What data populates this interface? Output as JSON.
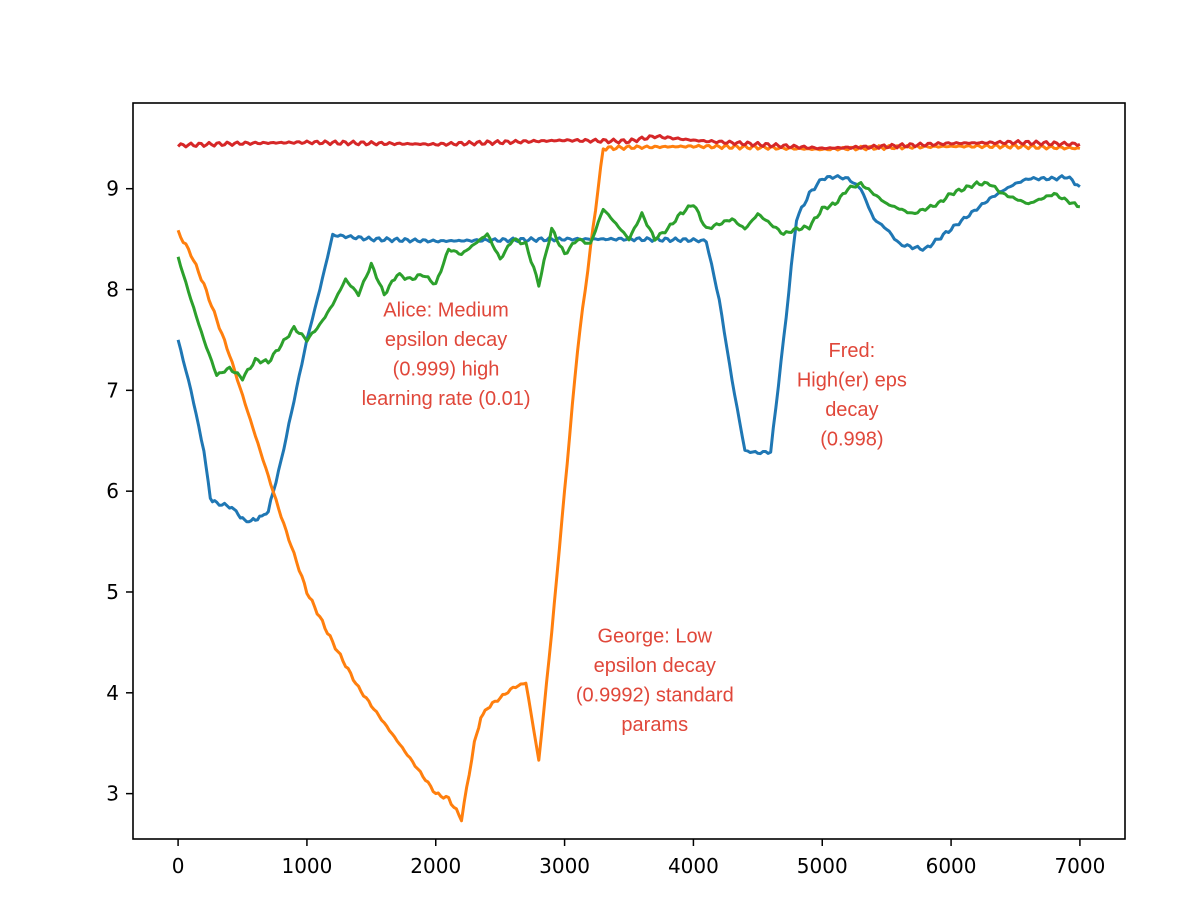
{
  "chart_data": {
    "type": "line",
    "title": "",
    "xlabel": "",
    "ylabel": "",
    "xlim": [
      -350,
      7350
    ],
    "ylim": [
      2.55,
      9.85
    ],
    "grid": false,
    "legend": "none",
    "x_ticks": [
      0,
      1000,
      2000,
      3000,
      4000,
      5000,
      6000,
      7000
    ],
    "x_tick_labels": [
      "0",
      "1000",
      "2000",
      "3000",
      "4000",
      "5000",
      "6000",
      "7000"
    ],
    "y_ticks": [
      3,
      4,
      5,
      6,
      7,
      8,
      9
    ],
    "y_tick_labels": [
      "3",
      "4",
      "5",
      "6",
      "7",
      "8",
      "9"
    ],
    "series": [
      {
        "color": "#1f77b4",
        "x": [
          0,
          100,
          200,
          250,
          300,
          400,
          450,
          500,
          550,
          600,
          650,
          700,
          800,
          900,
          1000,
          1100,
          1200,
          1500,
          2000,
          2500,
          3000,
          3500,
          4000,
          4100,
          4200,
          4300,
          4400,
          4500,
          4600,
          4700,
          4800,
          4900,
          5000,
          5100,
          5200,
          5300,
          5400,
          5500,
          5600,
          5700,
          5800,
          5900,
          6000,
          6100,
          6200,
          6300,
          6400,
          6500,
          6600,
          6700,
          6800,
          6900,
          7000
        ],
        "values": [
          7.5,
          7.0,
          6.4,
          5.93,
          5.88,
          5.85,
          5.8,
          5.72,
          5.7,
          5.72,
          5.75,
          5.8,
          6.3,
          6.9,
          7.5,
          8.0,
          8.54,
          8.5,
          8.48,
          8.49,
          8.5,
          8.5,
          8.49,
          8.48,
          7.9,
          7.1,
          6.4,
          6.38,
          6.39,
          7.5,
          8.7,
          8.95,
          9.1,
          9.12,
          9.1,
          9.0,
          8.7,
          8.6,
          8.45,
          8.42,
          8.4,
          8.5,
          8.6,
          8.7,
          8.8,
          8.9,
          8.98,
          9.05,
          9.1,
          9.1,
          9.1,
          9.12,
          9.02
        ]
      },
      {
        "color": "#ff7f0e",
        "x": [
          0,
          100,
          200,
          400,
          600,
          800,
          1000,
          1200,
          1400,
          1600,
          1800,
          2000,
          2100,
          2200,
          2300,
          2350,
          2400,
          2500,
          2600,
          2700,
          2800,
          2900,
          3000,
          3100,
          3200,
          3300,
          3500,
          4000,
          4500,
          5000,
          5500,
          6000,
          6500,
          7000
        ],
        "values": [
          8.57,
          8.35,
          8.05,
          7.35,
          6.55,
          5.75,
          5.0,
          4.5,
          4.05,
          3.7,
          3.35,
          3.0,
          2.95,
          2.75,
          3.5,
          3.75,
          3.85,
          3.95,
          4.05,
          4.1,
          3.33,
          4.6,
          6.0,
          7.4,
          8.4,
          9.4,
          9.41,
          9.42,
          9.41,
          9.39,
          9.41,
          9.42,
          9.42,
          9.4
        ]
      },
      {
        "color": "#2ca02c",
        "x": [
          0,
          100,
          200,
          300,
          400,
          500,
          600,
          700,
          800,
          900,
          1000,
          1100,
          1200,
          1300,
          1400,
          1500,
          1600,
          1700,
          1800,
          1900,
          2000,
          2100,
          2200,
          2300,
          2400,
          2500,
          2600,
          2700,
          2800,
          2900,
          3000,
          3100,
          3200,
          3300,
          3400,
          3500,
          3600,
          3700,
          3800,
          3900,
          4000,
          4100,
          4200,
          4300,
          4400,
          4500,
          4600,
          4700,
          4800,
          4900,
          5000,
          5100,
          5200,
          5300,
          5400,
          5500,
          5600,
          5700,
          5800,
          5900,
          6000,
          6100,
          6200,
          6300,
          6400,
          6500,
          6600,
          6700,
          6800,
          6900,
          7000
        ],
        "values": [
          8.32,
          7.9,
          7.5,
          7.15,
          7.22,
          7.12,
          7.3,
          7.28,
          7.45,
          7.62,
          7.5,
          7.65,
          7.85,
          8.1,
          7.95,
          8.25,
          7.95,
          8.15,
          8.1,
          8.15,
          8.05,
          8.4,
          8.35,
          8.45,
          8.55,
          8.3,
          8.5,
          8.45,
          8.05,
          8.6,
          8.35,
          8.5,
          8.45,
          8.8,
          8.65,
          8.5,
          8.75,
          8.5,
          8.6,
          8.75,
          8.85,
          8.6,
          8.65,
          8.7,
          8.6,
          8.75,
          8.65,
          8.55,
          8.6,
          8.62,
          8.8,
          8.85,
          9.0,
          9.05,
          8.95,
          8.85,
          8.8,
          8.75,
          8.8,
          8.85,
          8.95,
          9.0,
          9.05,
          9.05,
          8.95,
          8.9,
          8.85,
          8.9,
          8.95,
          8.88,
          8.82
        ]
      },
      {
        "color": "#d62728",
        "x": [
          0,
          500,
          1000,
          1500,
          2000,
          2500,
          3000,
          3500,
          3700,
          4000,
          4500,
          5000,
          5500,
          6000,
          6500,
          7000
        ],
        "values": [
          9.43,
          9.45,
          9.46,
          9.45,
          9.44,
          9.46,
          9.48,
          9.47,
          9.52,
          9.48,
          9.44,
          9.4,
          9.42,
          9.45,
          9.46,
          9.44
        ]
      }
    ],
    "annotations": [
      {
        "lines": [
          "Alice: Medium",
          "epsilon decay",
          "(0.999) high",
          "learning rate (0.01)"
        ],
        "x": 2080,
        "y": 7.73,
        "color": "#e0473a"
      },
      {
        "lines": [
          "Fred:",
          "High(er) eps",
          "decay",
          "(0.998)"
        ],
        "x": 5230,
        "y": 7.33,
        "color": "#e0473a"
      },
      {
        "lines": [
          "George: Low",
          "epsilon decay",
          "(0.9992) standard",
          "params"
        ],
        "x": 3700,
        "y": 4.5,
        "color": "#e0473a"
      }
    ]
  }
}
